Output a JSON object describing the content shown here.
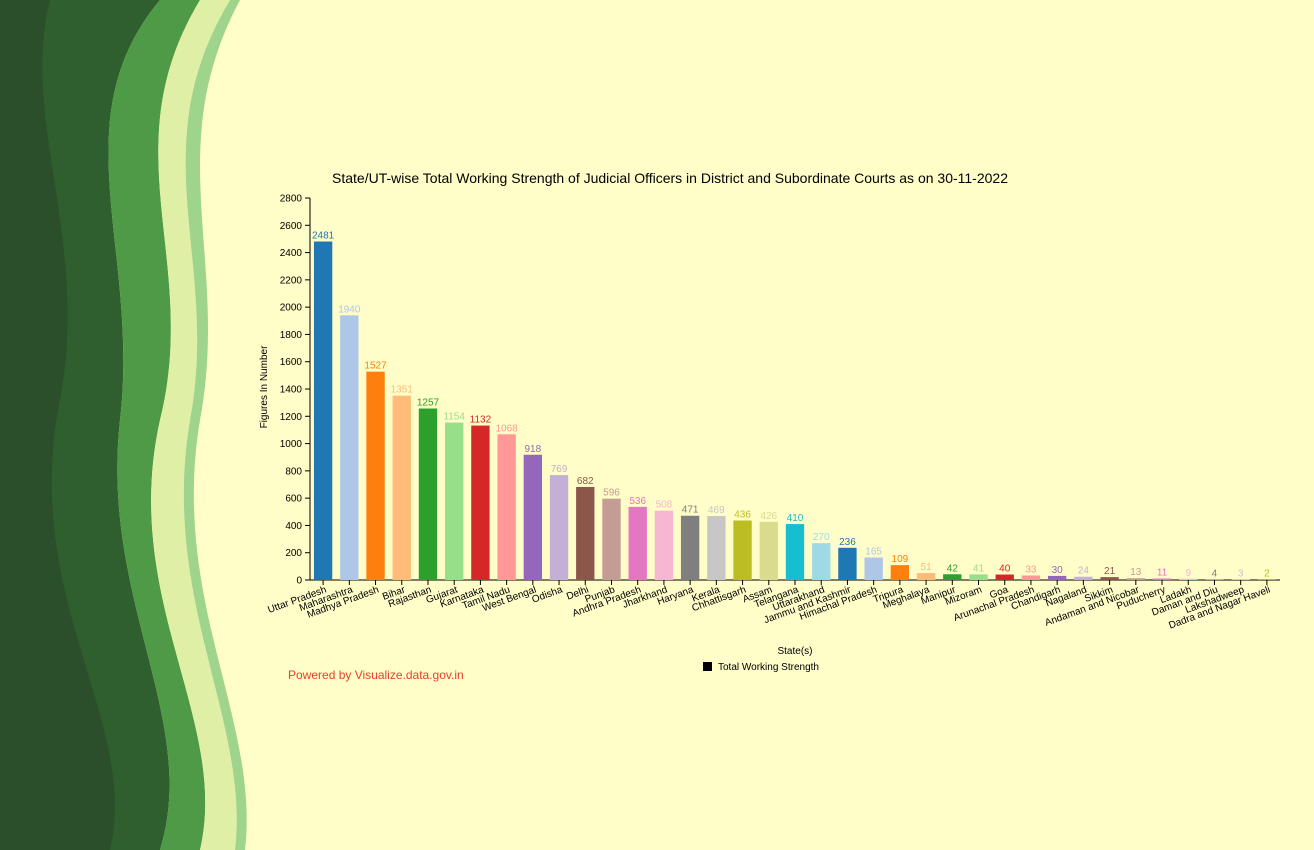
{
  "chart_data": {
    "type": "bar",
    "title": "State/UT-wise Total Working Strength of Judicial Officers in District and Subordinate Courts as on 30-11-2022",
    "x_label": "State(s)",
    "y_label": "Figures In Number",
    "categories": [
      "Uttar Pradesh",
      "Maharashtra",
      "Madhya Pradesh",
      "Bihar",
      "Rajasthan",
      "Gujarat",
      "Karnataka",
      "Tamil Nadu",
      "West Bengal",
      "Odisha",
      "Delhi",
      "Punjab",
      "Andhra Pradesh",
      "Jharkhand",
      "Haryana",
      "Kerala",
      "Chhattisgarh",
      "Assam",
      "Telangana",
      "Uttarakhand",
      "Jammu and Kashmir",
      "Himachal Pradesh",
      "Tripura",
      "Meghalaya",
      "Manipur",
      "Mizoram",
      "Goa",
      "Arunachal Pradesh",
      "Chandigarh",
      "Nagaland",
      "Sikkim",
      "Andaman and Nicobar",
      "Puducherry",
      "Ladakh",
      "Daman and Diu",
      "Lakshadweep",
      "Dadra and Nagar Haveli"
    ],
    "series": [
      {
        "name": "Total Working Strength",
        "color": "#000000",
        "values": [
          2481,
          1940,
          1527,
          1351,
          1257,
          1154,
          1132,
          1068,
          918,
          769,
          682,
          596,
          536,
          508,
          471,
          469,
          436,
          426,
          410,
          270,
          236,
          165,
          109,
          51,
          42,
          41,
          40,
          33,
          30,
          24,
          21,
          13,
          11,
          9,
          4,
          3,
          2
        ],
        "colors": [
          "#1f77b4",
          "#aec7e8",
          "#ff7f0e",
          "#ffbb78",
          "#2ca02c",
          "#98df8a",
          "#d62728",
          "#ff9896",
          "#9467bd",
          "#c5b0d5",
          "#8c564b",
          "#c49c94",
          "#e377c2",
          "#f7b6d2",
          "#7f7f7f",
          "#c7c7c7",
          "#bcbd22",
          "#dbdb8d",
          "#17becf",
          "#9edae5",
          "#1f77b4",
          "#aec7e8",
          "#ff7f0e",
          "#ffbb78",
          "#2ca02c",
          "#98df8a",
          "#d62728",
          "#ff9896",
          "#9467bd",
          "#c5b0d5",
          "#8c564b",
          "#c49c94",
          "#e377c2",
          "#f7b6d2",
          "#7f7f7f",
          "#c7c7c7",
          "#bcbd22"
        ]
      }
    ],
    "ylim": [
      0,
      2800
    ],
    "yticks": [
      0,
      200,
      400,
      600,
      800,
      1000,
      1200,
      1400,
      1600,
      1800,
      2000,
      2200,
      2400,
      2600,
      2800
    ]
  },
  "footer": "Powered by Visualize.data.gov.in"
}
